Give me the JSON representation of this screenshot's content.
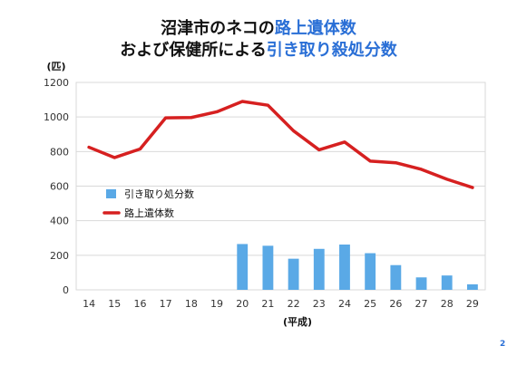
{
  "title": {
    "line1_plain": "沼津市のネコの",
    "line1_highlight": "路上遺体数",
    "line2_plain": "および保健所による",
    "line2_highlight": "引き取り殺処分数"
  },
  "page_number": "2",
  "colors": {
    "bar": "#5aa9e6",
    "line": "#d62020",
    "title_highlight": "#2a6fd6",
    "grid": "#d9d9d9",
    "axis_text": "#333333"
  },
  "chart_data": {
    "type": "bar",
    "categories": [
      "14",
      "15",
      "16",
      "17",
      "18",
      "19",
      "20",
      "21",
      "22",
      "23",
      "24",
      "25",
      "26",
      "27",
      "28",
      "29"
    ],
    "series": [
      {
        "name": "引き取り処分数",
        "type": "bar",
        "values": [
          null,
          null,
          null,
          null,
          null,
          null,
          265,
          255,
          180,
          237,
          262,
          212,
          143,
          72,
          83,
          32
        ]
      },
      {
        "name": "路上遺体数",
        "type": "line",
        "values": [
          825,
          765,
          815,
          995,
          997,
          1030,
          1090,
          1068,
          920,
          810,
          855,
          745,
          735,
          697,
          640,
          592
        ]
      }
    ],
    "ylabel": "(匹)",
    "xlabel": "(平成)",
    "ylim": [
      0,
      1200
    ],
    "yticks": [
      0,
      200,
      400,
      600,
      800,
      1000,
      1200
    ],
    "grid": true,
    "legend": "inside-left"
  }
}
